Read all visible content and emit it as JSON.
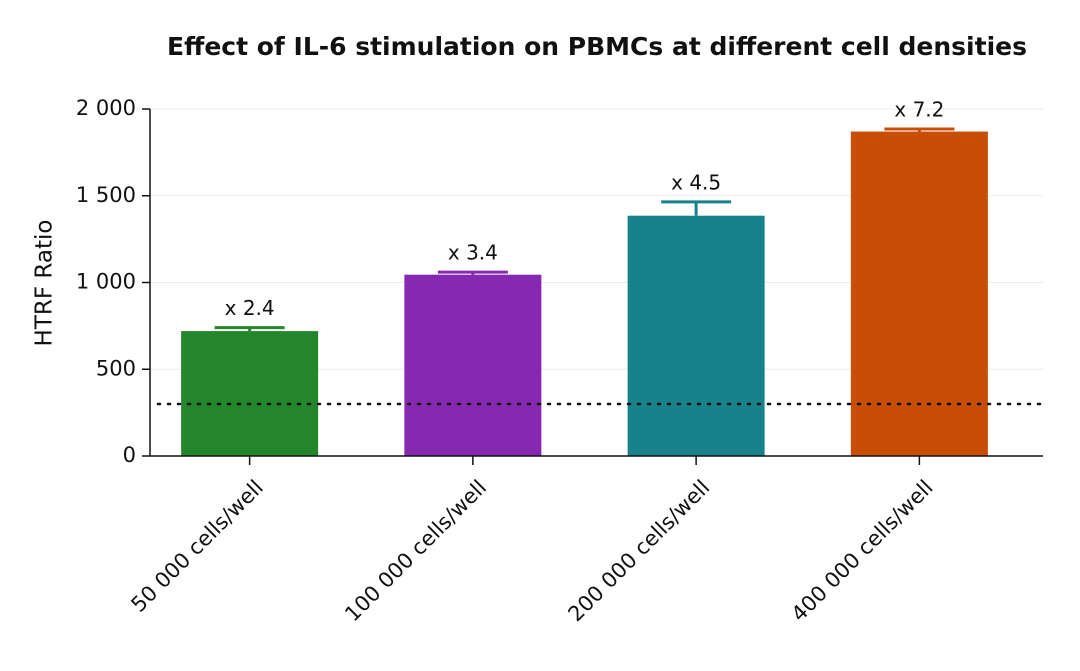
{
  "chart_data": {
    "type": "bar",
    "title": "Effect of IL-6 stimulation on PBMCs at different cell densities",
    "y_label": "HTRF Ratio",
    "categories": [
      "50 000 cells/well",
      "100 000  cells/well",
      "200 000  cells/well",
      "400 000  cells/well"
    ],
    "values": [
      720,
      1045,
      1385,
      1870
    ],
    "errors": [
      20,
      15,
      80,
      15
    ],
    "colors": [
      "#23862b",
      "#8629b1",
      "#17828a",
      "#c84e05"
    ],
    "annotations": [
      "x 2.4",
      "x 3.4",
      "x 4.5",
      "x 7.2"
    ],
    "baseline": 300,
    "ylim": [
      0,
      2000
    ],
    "yticks": [
      0,
      500,
      {
        "value": 1000,
        "label": "1 000"
      },
      {
        "value": 1500,
        "label": "1 500"
      },
      {
        "value": 2000,
        "label": "2 000"
      }
    ],
    "grid": true
  }
}
